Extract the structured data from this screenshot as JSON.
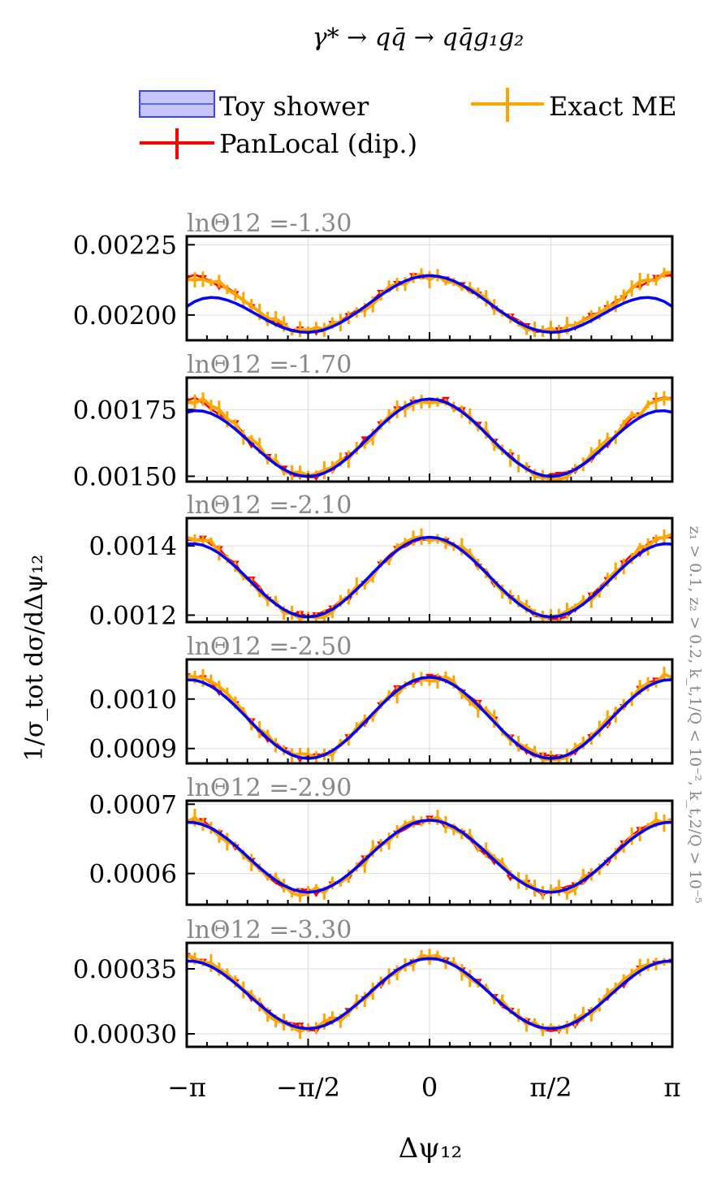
{
  "title": "γ* → qq̄ → qq̄g₁g₂",
  "legend": {
    "items": [
      {
        "label": "Toy shower",
        "color": "#0000ff",
        "style": "band"
      },
      {
        "label": "Exact ME",
        "color": "#ffa500",
        "style": "errorbar"
      },
      {
        "label": "PanLocal (dip.)",
        "color": "#ff0000",
        "style": "errorbar"
      }
    ]
  },
  "ylabel": "1/σ_tot dσ/dΔψ₁₂",
  "xlabel": "Δψ₁₂",
  "side_label": "z₁ > 0.1, z₂ > 0.2, k_t,1/Q < 10⁻², k_t,2/Q > 10⁻⁵",
  "x_ticks": [
    "−π",
    "−π/2",
    "0",
    "π/2",
    "π"
  ],
  "colors": {
    "toy": "#0000ff",
    "exact": "#ffa500",
    "panlocal": "#ff0000",
    "grid": "#dddddd",
    "panel_title": "#888888"
  },
  "chart_data": [
    {
      "type": "line",
      "title": "lnΘ12 =-1.30",
      "xlim": [
        -3.1416,
        3.1416
      ],
      "ylim": [
        0.00191,
        0.00228
      ],
      "yticks": [
        0.002,
        0.00225
      ],
      "ytick_labels": [
        "0.00200",
        "0.00225"
      ],
      "series": [
        {
          "name": "Toy shower",
          "mean": 0.00204,
          "amp": 0.0001,
          "edge": -0.00011
        },
        {
          "name": "PanLocal (dip.)",
          "mean": 0.00204,
          "amp": 0.0001,
          "edge": 0.0
        },
        {
          "name": "Exact ME",
          "mean": 0.00204,
          "amp": 0.0001,
          "edge": 0.0
        }
      ]
    },
    {
      "type": "line",
      "title": "lnΘ12 =-1.70",
      "xlim": [
        -3.1416,
        3.1416
      ],
      "ylim": [
        0.00148,
        0.00187
      ],
      "yticks": [
        0.0015,
        0.00175
      ],
      "ytick_labels": [
        "0.00150",
        "0.00175"
      ],
      "series": [
        {
          "name": "Toy shower",
          "mean": 0.001645,
          "amp": 0.000145,
          "edge": -5e-05
        },
        {
          "name": "PanLocal (dip.)",
          "mean": 0.001645,
          "amp": 0.000145,
          "edge": 0.0
        },
        {
          "name": "Exact ME",
          "mean": 0.001645,
          "amp": 0.000145,
          "edge": 0.0
        }
      ]
    },
    {
      "type": "line",
      "title": "lnΘ12 =-2.10",
      "xlim": [
        -3.1416,
        3.1416
      ],
      "ylim": [
        0.00118,
        0.00148
      ],
      "yticks": [
        0.0012,
        0.0014
      ],
      "ytick_labels": [
        "0.0012",
        "0.0014"
      ],
      "series": [
        {
          "name": "Toy shower",
          "mean": 0.00131,
          "amp": 0.000115,
          "edge": -2e-05
        },
        {
          "name": "PanLocal (dip.)",
          "mean": 0.00131,
          "amp": 0.000115,
          "edge": 0.0
        },
        {
          "name": "Exact ME",
          "mean": 0.00131,
          "amp": 0.000115,
          "edge": 0.0
        }
      ]
    },
    {
      "type": "line",
      "title": "lnΘ12 =-2.50",
      "xlim": [
        -3.1416,
        3.1416
      ],
      "ylim": [
        0.00087,
        0.00108
      ],
      "yticks": [
        0.0009,
        0.001
      ],
      "ytick_labels": [
        "0.0009",
        "0.0010"
      ],
      "series": [
        {
          "name": "Toy shower",
          "mean": 0.000962,
          "amp": 8.2e-05,
          "edge": -5e-06
        },
        {
          "name": "PanLocal (dip.)",
          "mean": 0.000962,
          "amp": 8.2e-05,
          "edge": 0.0
        },
        {
          "name": "Exact ME",
          "mean": 0.000962,
          "amp": 8.2e-05,
          "edge": 0.0
        }
      ]
    },
    {
      "type": "line",
      "title": "lnΘ12 =-2.90",
      "xlim": [
        -3.1416,
        3.1416
      ],
      "ylim": [
        0.000555,
        0.000705
      ],
      "yticks": [
        0.0006,
        0.0007
      ],
      "ytick_labels": [
        "0.0006",
        "0.0007"
      ],
      "series": [
        {
          "name": "Toy shower",
          "mean": 0.000625,
          "amp": 5.2e-05,
          "edge": -3e-06
        },
        {
          "name": "PanLocal (dip.)",
          "mean": 0.000625,
          "amp": 5.2e-05,
          "edge": 0.0
        },
        {
          "name": "Exact ME",
          "mean": 0.000625,
          "amp": 5.2e-05,
          "edge": 0.0
        }
      ]
    },
    {
      "type": "line",
      "title": "lnΘ12 =-3.30",
      "xlim": [
        -3.1416,
        3.1416
      ],
      "ylim": [
        0.00029,
        0.00037
      ],
      "yticks": [
        0.0003,
        0.00035
      ],
      "ytick_labels": [
        "0.00030",
        "0.00035"
      ],
      "series": [
        {
          "name": "Toy shower",
          "mean": 0.000331,
          "amp": 2.7e-05,
          "edge": -2e-06
        },
        {
          "name": "PanLocal (dip.)",
          "mean": 0.000331,
          "amp": 2.7e-05,
          "edge": 0.0
        },
        {
          "name": "Exact ME",
          "mean": 0.000331,
          "amp": 2.7e-05,
          "edge": 0.0
        }
      ]
    }
  ]
}
